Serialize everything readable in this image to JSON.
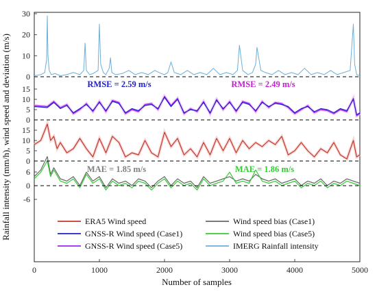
{
  "chart_data": {
    "type": "line",
    "xlabel": "Number of samples",
    "ylabel": "Rainfall intensity (mm/h), wind speed and deviation (m/s)",
    "xlim": [
      0,
      5000
    ],
    "x_ticks": [
      "0",
      "1000",
      "2000",
      "3000",
      "4000",
      "5000"
    ],
    "grid": false,
    "legend_position": "bottom",
    "colors": {
      "era5": "#c0392b",
      "case1": "#1f1fcc",
      "case5": "#a020f0",
      "imerg": "#6baed6",
      "bias1": "#666666",
      "bias5": "#33cc33",
      "rmse1_text": "#1f1fcc",
      "rmse5_text": "#c020d0",
      "mae1_text": "#808080",
      "mae5_text": "#33cc33"
    },
    "panels": [
      {
        "id": "rainfall",
        "y_ticks": [
          "0",
          "10",
          "20",
          "30"
        ],
        "ylim": [
          0,
          30
        ],
        "series": [
          {
            "key": "imerg",
            "x": [
              0,
              100,
              160,
              190,
              200,
              210,
              230,
              260,
              320,
              400,
              500,
              600,
              700,
              760,
              780,
              800,
              850,
              900,
              980,
              1000,
              1020,
              1060,
              1100,
              1150,
              1170,
              1190,
              1250,
              1350,
              1450,
              1550,
              1650,
              1750,
              1850,
              1950,
              2000,
              2050,
              2100,
              2150,
              2250,
              2350,
              2450,
              2550,
              2650,
              2750,
              2850,
              2950,
              3050,
              3120,
              3150,
              3200,
              3280,
              3350,
              3400,
              3420,
              3480,
              3550,
              3650,
              3750,
              3850,
              3950,
              4050,
              4150,
              4250,
              4350,
              4450,
              4550,
              4650,
              4750,
              4850,
              4900,
              4920,
              4950,
              5000
            ],
            "values": [
              0.5,
              1,
              2,
              8,
              29,
              10,
              3,
              1,
              1.5,
              0.5,
              1,
              2,
              1,
              3,
              16,
              3,
              1,
              1.5,
              3,
              25,
              6,
              2,
              1,
              4,
              9,
              2,
              1,
              1.5,
              3,
              1,
              2,
              1,
              3,
              1.5,
              1,
              2,
              7,
              2,
              1,
              3,
              1,
              2,
              1,
              4,
              1,
              2,
              1,
              3,
              15,
              3,
              1,
              2,
              6,
              14,
              3,
              2,
              1,
              3,
              1,
              2,
              1,
              4,
              1,
              2,
              1,
              3,
              1,
              2,
              3,
              25,
              6,
              1,
              0.5
            ]
          }
        ]
      },
      {
        "id": "gnssr",
        "y_ticks": [
          "0",
          "5",
          "10",
          "15"
        ],
        "ylim": [
          0,
          16
        ],
        "annotations": [
          {
            "key": "rmse1_text",
            "text": "RMSE = 2.59 m/s"
          },
          {
            "key": "rmse5_text",
            "text": "RMSE = 2.49 m/s"
          }
        ],
        "series": [
          {
            "key": "case5",
            "x": [
              0,
              200,
              300,
              400,
              500,
              600,
              700,
              800,
              900,
              1000,
              1100,
              1200,
              1300,
              1400,
              1500,
              1600,
              1700,
              1800,
              1900,
              2000,
              2100,
              2200,
              2300,
              2400,
              2500,
              2600,
              2700,
              2800,
              2900,
              3000,
              3100,
              3200,
              3300,
              3400,
              3500,
              3600,
              3700,
              3800,
              3900,
              4000,
              4100,
              4200,
              4300,
              4400,
              4500,
              4600,
              4700,
              4800,
              4900,
              4950,
              5000
            ],
            "values": [
              7,
              6.5,
              9,
              6,
              7.5,
              3,
              5,
              8,
              4,
              9,
              4,
              9.5,
              8.5,
              3,
              5,
              4,
              7.5,
              8,
              5,
              11.5,
              7,
              10.5,
              3,
              5.5,
              4,
              9,
              3,
              10,
              5,
              9,
              4,
              9,
              8,
              4,
              9,
              6,
              8.5,
              8,
              6,
              3,
              5,
              7,
              3.5,
              5,
              4.5,
              3,
              5,
              4,
              10.5,
              2,
              3
            ]
          },
          {
            "key": "case1",
            "x": [
              0,
              200,
              300,
              400,
              500,
              600,
              700,
              800,
              900,
              1000,
              1100,
              1200,
              1300,
              1400,
              1500,
              1600,
              1700,
              1800,
              1900,
              2000,
              2100,
              2200,
              2300,
              2400,
              2500,
              2600,
              2700,
              2800,
              2900,
              3000,
              3100,
              3200,
              3300,
              3400,
              3500,
              3600,
              3700,
              3800,
              3900,
              4000,
              4100,
              4200,
              4300,
              4400,
              4500,
              4600,
              4700,
              4800,
              4900,
              4950,
              5000
            ],
            "values": [
              6.5,
              6,
              8.5,
              5.5,
              7,
              3.5,
              5.5,
              7.5,
              4.5,
              8.5,
              4.5,
              9,
              8,
              3.5,
              5.5,
              4.5,
              7,
              7.5,
              5.5,
              11,
              6.5,
              10,
              3.5,
              5,
              4.5,
              8.5,
              3.5,
              9.5,
              5.5,
              8.5,
              4.5,
              8.5,
              7.5,
              4.5,
              8.5,
              6.5,
              8,
              7.5,
              6.5,
              3.5,
              5.5,
              6.5,
              4,
              5.5,
              5,
              3.5,
              5.5,
              4.5,
              10,
              2.5,
              3.5
            ]
          }
        ]
      },
      {
        "id": "era5",
        "y_ticks": [
          "0",
          "5",
          "10",
          "15"
        ],
        "ylim": [
          0,
          20
        ],
        "series": [
          {
            "key": "era5",
            "x": [
              0,
              100,
              150,
              200,
              250,
              300,
              350,
              400,
              500,
              600,
              700,
              800,
              900,
              1000,
              1100,
              1200,
              1300,
              1400,
              1500,
              1600,
              1700,
              1800,
              1900,
              2000,
              2100,
              2200,
              2300,
              2400,
              2500,
              2600,
              2700,
              2800,
              2900,
              3000,
              3100,
              3200,
              3300,
              3400,
              3500,
              3600,
              3700,
              3800,
              3900,
              4000,
              4100,
              4200,
              4300,
              4400,
              4500,
              4600,
              4700,
              4800,
              4900,
              4950,
              5000
            ],
            "values": [
              8,
              10,
              14,
              18,
              10,
              12,
              6,
              9,
              4,
              6,
              11,
              6,
              2,
              11,
              4,
              12,
              9,
              2,
              4,
              3,
              10,
              4,
              2,
              14,
              7,
              11,
              3,
              6,
              2,
              9,
              3,
              11,
              5,
              11,
              4,
              10,
              6,
              9,
              7,
              10,
              8,
              12,
              3,
              5,
              9,
              5,
              2,
              6,
              4,
              9,
              3,
              1,
              10,
              2,
              3
            ]
          }
        ]
      },
      {
        "id": "bias",
        "y_ticks": [
          "-6",
          "0",
          "6"
        ],
        "ylim": [
          -10,
          10
        ],
        "annotations": [
          {
            "key": "mae1_text",
            "text": "MAE = 1.85 m/s"
          },
          {
            "key": "mae5_text",
            "text": "MAE = 1.86 m/s"
          }
        ],
        "series": [
          {
            "key": "bias1",
            "x": [
              0,
              100,
              200,
              250,
              300,
              400,
              500,
              600,
              700,
              800,
              900,
              1000,
              1100,
              1200,
              1300,
              1400,
              1500,
              1600,
              1700,
              1800,
              1900,
              2000,
              2100,
              2200,
              2300,
              2400,
              2500,
              2600,
              2700,
              2800,
              2900,
              3000,
              3100,
              3200,
              3300,
              3400,
              3500,
              3600,
              3700,
              3800,
              3900,
              4000,
              4100,
              4200,
              4300,
              4400,
              4500,
              4600,
              4700,
              4800,
              4900,
              5000
            ],
            "values": [
              3,
              6,
              12,
              4,
              7,
              2,
              1,
              3,
              -1,
              5,
              1,
              3,
              -2,
              2,
              0,
              1,
              -1,
              2,
              1,
              -2,
              1,
              3,
              -1,
              2,
              0,
              1,
              -2,
              3,
              0,
              1,
              2,
              3,
              1,
              2,
              1,
              4,
              2,
              1,
              2,
              0,
              1,
              2,
              -1,
              1,
              0,
              2,
              -1,
              1,
              0,
              2,
              1,
              0
            ]
          },
          {
            "key": "bias5",
            "x": [
              0,
              100,
              200,
              250,
              300,
              400,
              500,
              600,
              700,
              800,
              900,
              1000,
              1100,
              1200,
              1300,
              1400,
              1500,
              1600,
              1700,
              1800,
              1900,
              2000,
              2100,
              2200,
              2300,
              2400,
              2500,
              2600,
              2700,
              2800,
              2900,
              3000,
              3100,
              3200,
              3300,
              3400,
              3500,
              3600,
              3700,
              3800,
              3900,
              4000,
              4100,
              4200,
              4300,
              4400,
              4500,
              4600,
              4700,
              4800,
              4900,
              5000
            ],
            "values": [
              2,
              5,
              10,
              3,
              6,
              1,
              0,
              2,
              -2,
              4,
              0,
              2,
              -3,
              1,
              -1,
              0,
              -2,
              1,
              0,
              -3,
              0,
              2,
              -2,
              1,
              -1,
              0,
              -3,
              2,
              -1,
              0,
              1,
              5,
              0,
              1,
              0,
              6,
              1,
              0,
              1,
              -1,
              0,
              1,
              -2,
              0,
              -1,
              1,
              -2,
              0,
              -1,
              1,
              0,
              -1
            ]
          }
        ]
      }
    ],
    "legend": [
      {
        "key": "era5",
        "label": "ERA5 Wind speed"
      },
      {
        "key": "bias1",
        "label": "Wind speed bias (Case1)"
      },
      {
        "key": "case1",
        "label": "GNSS-R Wind speed (Case1)"
      },
      {
        "key": "bias5",
        "label": "Wind speed bias (Case5)"
      },
      {
        "key": "case5",
        "label": "GNSS-R Wind speed (Case5)"
      },
      {
        "key": "imerg",
        "label": "IMERG Rainfall intensity"
      }
    ]
  }
}
